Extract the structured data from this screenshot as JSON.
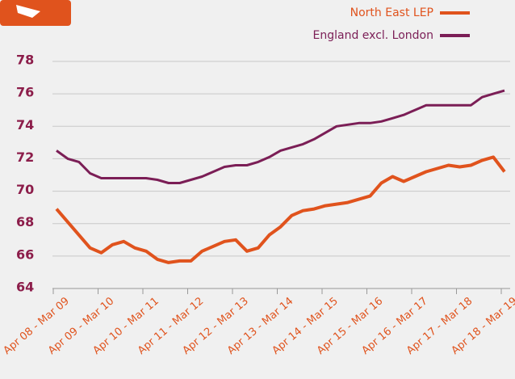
{
  "chart_data": {
    "type": "line",
    "categories": [
      "Apr 08 - Mar 09",
      null,
      null,
      null,
      "Apr 09 - Mar 10",
      null,
      null,
      null,
      "Apr 10 - Mar 11",
      null,
      null,
      null,
      "Apr 11 - Mar 12",
      null,
      null,
      null,
      "Apr 12 - Mar 13",
      null,
      null,
      null,
      "Apr 13 - Mar 14",
      null,
      null,
      null,
      "Apr 14 - Mar 15",
      null,
      null,
      null,
      "Apr 15 - Mar 16",
      null,
      null,
      null,
      "Apr 16 - Mar 17",
      null,
      null,
      null,
      "Apr 17 - Mar 18",
      null,
      null,
      null,
      "Apr 18 - Mar 19"
    ],
    "series": [
      {
        "name": "North East LEP",
        "color": "#e0531d",
        "values": [
          68.9,
          68.1,
          67.3,
          66.5,
          66.2,
          66.7,
          66.9,
          66.5,
          66.3,
          65.8,
          65.6,
          65.7,
          65.7,
          66.3,
          66.6,
          66.9,
          67.0,
          66.3,
          66.5,
          67.3,
          67.8,
          68.5,
          68.8,
          68.9,
          69.1,
          69.2,
          69.3,
          69.5,
          69.7,
          70.5,
          70.9,
          70.6,
          70.9,
          71.2,
          71.4,
          71.6,
          71.5,
          71.6,
          71.9,
          72.1,
          71.2
        ]
      },
      {
        "name": "England excl. London",
        "color": "#7b1e56",
        "values": [
          72.5,
          72.0,
          71.8,
          71.1,
          70.8,
          70.8,
          70.8,
          70.8,
          70.8,
          70.7,
          70.5,
          70.5,
          70.7,
          70.9,
          71.2,
          71.5,
          71.6,
          71.6,
          71.8,
          72.1,
          72.5,
          72.7,
          72.9,
          73.2,
          73.6,
          74.0,
          74.1,
          74.2,
          74.2,
          74.3,
          74.5,
          74.7,
          75.0,
          75.3,
          75.3,
          75.3,
          75.3,
          75.3,
          75.8,
          76.0,
          76.2
        ]
      }
    ],
    "ylim": [
      64,
      78
    ],
    "yticks": [
      64,
      66,
      68,
      70,
      72,
      74,
      76,
      78
    ],
    "grid": true,
    "legend": "top-right"
  }
}
